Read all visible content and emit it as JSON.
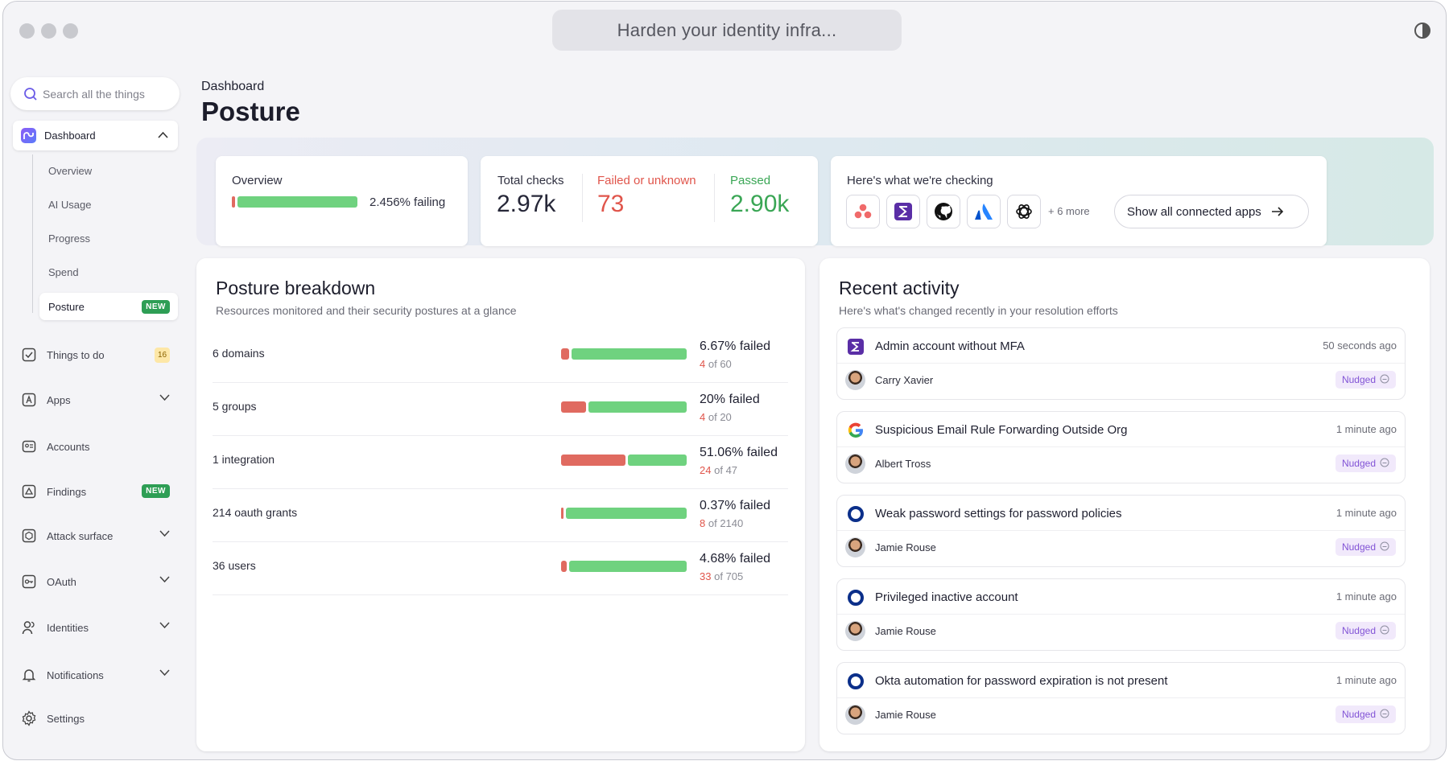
{
  "window": {
    "url_text": "Harden your identity infra..."
  },
  "sidebar": {
    "search_placeholder": "Search all the things",
    "dashboard": {
      "label": "Dashboard",
      "children": [
        "Overview",
        "AI Usage",
        "Progress",
        "Spend",
        "Posture"
      ],
      "active": "Posture",
      "active_badge": "NEW"
    },
    "items": [
      {
        "label": "Things to do",
        "icon": "check-square-icon",
        "badge": "16"
      },
      {
        "label": "Apps",
        "icon": "apps-icon",
        "chevron": true
      },
      {
        "label": "Accounts",
        "icon": "id-card-icon"
      },
      {
        "label": "Findings",
        "icon": "warning-triangle-icon",
        "badge": "NEW"
      },
      {
        "label": "Attack surface",
        "icon": "hexagon-icon",
        "chevron": true
      },
      {
        "label": "OAuth",
        "icon": "key-icon",
        "chevron": true
      },
      {
        "label": "Identities",
        "icon": "users-icon",
        "chevron": true
      },
      {
        "label": "Notifications",
        "icon": "bell-icon",
        "chevron": true
      },
      {
        "label": "Settings",
        "icon": "gear-icon"
      }
    ]
  },
  "header": {
    "breadcrumb": "Dashboard",
    "title": "Posture"
  },
  "summary": {
    "overview_label": "Overview",
    "failing_text": "2.456% failing",
    "failing_fraction": 0.02456,
    "total_label": "Total checks",
    "total_value": "2.97k",
    "failed_label": "Failed or unknown",
    "failed_value": "73",
    "passed_label": "Passed",
    "passed_value": "2.90k",
    "checking_label": "Here's what we're checking",
    "apps": [
      "asana-icon",
      "figma-style-icon",
      "github-icon",
      "atlassian-icon",
      "openai-icon"
    ],
    "more_text": "+ 6 more",
    "show_all": "Show all connected apps"
  },
  "breakdown": {
    "title": "Posture breakdown",
    "subtitle": "Resources monitored and their security postures at a glance",
    "rows": [
      {
        "name": "6 domains",
        "pct": "6.67% failed",
        "failed": "4",
        "total": "60",
        "fraction": 0.0667
      },
      {
        "name": "5 groups",
        "pct": "20% failed",
        "failed": "4",
        "total": "20",
        "fraction": 0.2
      },
      {
        "name": "1 integration",
        "pct": "51.06% failed",
        "failed": "24",
        "total": "47",
        "fraction": 0.5106
      },
      {
        "name": "214 oauth grants",
        "pct": "0.37% failed",
        "failed": "8",
        "total": "2140",
        "fraction": 0.0037
      },
      {
        "name": "36 users",
        "pct": "4.68% failed",
        "failed": "33",
        "total": "705",
        "fraction": 0.0468
      }
    ],
    "of_word": "of"
  },
  "activity": {
    "title": "Recent activity",
    "subtitle": "Here's what's changed recently in your resolution efforts",
    "items": [
      {
        "title": "Admin account without MFA",
        "time": "50 seconds ago",
        "user": "Carry Xavier",
        "status": "Nudged",
        "icon": "figma-style-icon"
      },
      {
        "title": "Suspicious Email Rule Forwarding Outside Org",
        "time": "1 minute ago",
        "user": "Albert Tross",
        "status": "Nudged",
        "icon": "google-icon"
      },
      {
        "title": "Weak password settings for password policies",
        "time": "1 minute ago",
        "user": "Jamie Rouse",
        "status": "Nudged",
        "icon": "okta-icon"
      },
      {
        "title": "Privileged inactive account",
        "time": "1 minute ago",
        "user": "Jamie Rouse",
        "status": "Nudged",
        "icon": "okta-icon"
      },
      {
        "title": "Okta automation for password expiration is not present",
        "time": "1 minute ago",
        "user": "Jamie Rouse",
        "status": "Nudged",
        "icon": "okta-icon"
      }
    ]
  }
}
